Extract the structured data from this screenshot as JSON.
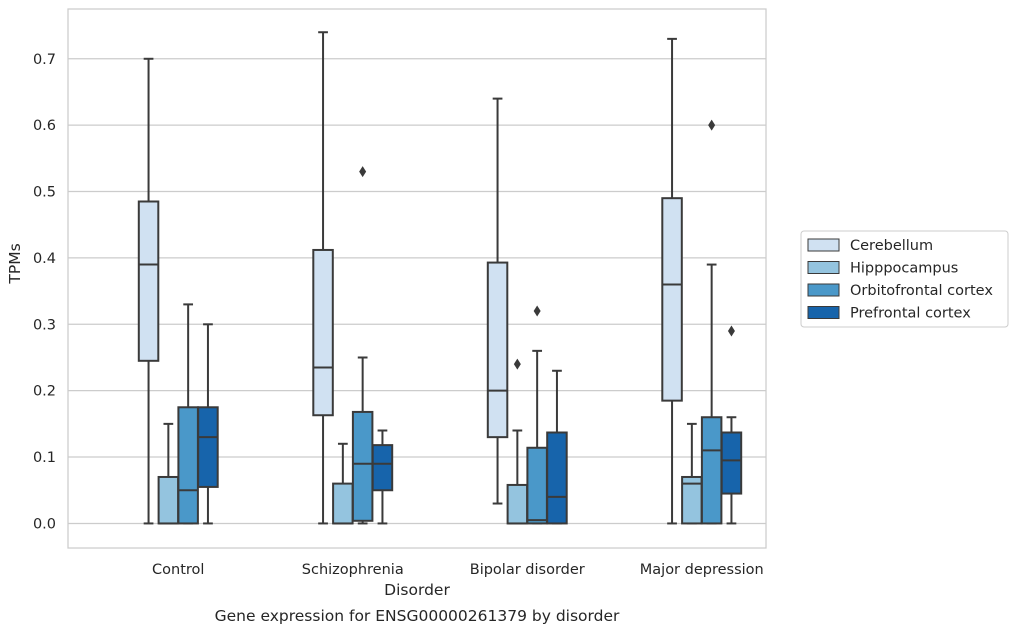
{
  "chart_data": {
    "type": "box",
    "caption": "Gene expression for ENSG00000261379 by disorder",
    "xlabel": "Disorder",
    "ylabel": "TPMs",
    "ylim": [
      -0.037,
      0.775
    ],
    "yticks": [
      "0.0",
      "0.1",
      "0.2",
      "0.3",
      "0.4",
      "0.5",
      "0.6",
      "0.7"
    ],
    "grid": "horizontal",
    "legend_position": "right",
    "categories": [
      "Control",
      "Schizophrenia",
      "Bipolar disorder",
      "Major depression"
    ],
    "series": [
      {
        "name": "Cerebellum",
        "color": "#d0e1f2",
        "boxes": [
          {
            "whisker_low": 0.0,
            "q1": 0.245,
            "median": 0.39,
            "q3": 0.485,
            "whisker_high": 0.7,
            "outliers": []
          },
          {
            "whisker_low": 0.0,
            "q1": 0.163,
            "median": 0.235,
            "q3": 0.412,
            "whisker_high": 0.74,
            "outliers": []
          },
          {
            "whisker_low": 0.03,
            "q1": 0.13,
            "median": 0.2,
            "q3": 0.393,
            "whisker_high": 0.64,
            "outliers": []
          },
          {
            "whisker_low": 0.0,
            "q1": 0.185,
            "median": 0.36,
            "q3": 0.49,
            "whisker_high": 0.73,
            "outliers": []
          }
        ]
      },
      {
        "name": "Hipppocampus",
        "color": "#94c4df",
        "boxes": [
          {
            "whisker_low": 0.0,
            "q1": 0.0,
            "median": 0.0,
            "q3": 0.07,
            "whisker_high": 0.15,
            "outliers": []
          },
          {
            "whisker_low": 0.0,
            "q1": 0.0,
            "median": 0.0,
            "q3": 0.06,
            "whisker_high": 0.12,
            "outliers": []
          },
          {
            "whisker_low": 0.0,
            "q1": 0.0,
            "median": 0.0,
            "q3": 0.058,
            "whisker_high": 0.14,
            "outliers": [
              0.24
            ]
          },
          {
            "whisker_low": 0.0,
            "q1": 0.0,
            "median": 0.06,
            "q3": 0.07,
            "whisker_high": 0.15,
            "outliers": []
          }
        ]
      },
      {
        "name": "Orbitofrontal cortex",
        "color": "#4a98c9",
        "boxes": [
          {
            "whisker_low": 0.0,
            "q1": 0.0,
            "median": 0.05,
            "q3": 0.175,
            "whisker_high": 0.33,
            "outliers": []
          },
          {
            "whisker_low": 0.0,
            "q1": 0.004,
            "median": 0.09,
            "q3": 0.168,
            "whisker_high": 0.25,
            "outliers": [
              0.53
            ]
          },
          {
            "whisker_low": 0.0,
            "q1": 0.0,
            "median": 0.005,
            "q3": 0.114,
            "whisker_high": 0.26,
            "outliers": [
              0.32
            ]
          },
          {
            "whisker_low": 0.0,
            "q1": 0.0,
            "median": 0.11,
            "q3": 0.16,
            "whisker_high": 0.39,
            "outliers": [
              0.6
            ]
          }
        ]
      },
      {
        "name": "Prefrontal cortex",
        "color": "#1764ab",
        "boxes": [
          {
            "whisker_low": 0.0,
            "q1": 0.055,
            "median": 0.13,
            "q3": 0.175,
            "whisker_high": 0.3,
            "outliers": []
          },
          {
            "whisker_low": 0.0,
            "q1": 0.05,
            "median": 0.09,
            "q3": 0.118,
            "whisker_high": 0.14,
            "outliers": []
          },
          {
            "whisker_low": 0.0,
            "q1": 0.0,
            "median": 0.04,
            "q3": 0.137,
            "whisker_high": 0.23,
            "outliers": []
          },
          {
            "whisker_low": 0.0,
            "q1": 0.045,
            "median": 0.095,
            "q3": 0.137,
            "whisker_high": 0.16,
            "outliers": [
              0.29
            ]
          }
        ]
      }
    ]
  }
}
